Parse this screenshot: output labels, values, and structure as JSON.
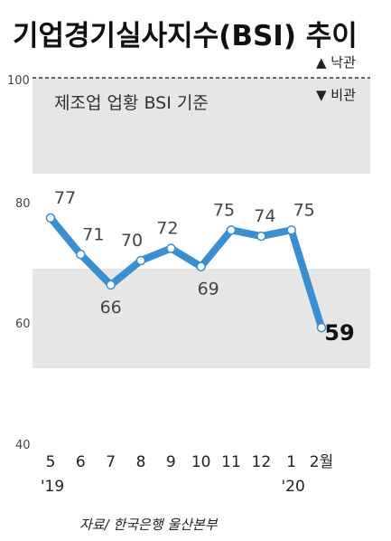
{
  "chart_data": {
    "type": "line",
    "title": "기업경기실사지수(BSI) 추이",
    "subtitle": "제조업 업황 BSI 기준",
    "legend": {
      "up_label": "▲ 낙관",
      "down_label": "▼ 비관"
    },
    "x_labels": [
      "5",
      "6",
      "7",
      "8",
      "9",
      "10",
      "11",
      "12",
      "1",
      "2월"
    ],
    "year_labels": [
      {
        "at_index": 0,
        "text": "'19"
      },
      {
        "at_index": 8,
        "text": "'20"
      }
    ],
    "values": [
      77,
      71,
      66,
      70,
      72,
      69,
      75,
      74,
      75,
      59
    ],
    "value_labels": [
      "77",
      "71",
      "66",
      "70",
      "72",
      "69",
      "75",
      "74",
      "75",
      "59"
    ],
    "y_ticks": [
      "100",
      "80",
      "60",
      "40"
    ],
    "ylim": [
      40,
      100
    ],
    "reference_line": 100,
    "line_color": "#3a8fd1",
    "band_color": "#e6e6e6",
    "source": "자료/ 한국은행 울산본부"
  }
}
